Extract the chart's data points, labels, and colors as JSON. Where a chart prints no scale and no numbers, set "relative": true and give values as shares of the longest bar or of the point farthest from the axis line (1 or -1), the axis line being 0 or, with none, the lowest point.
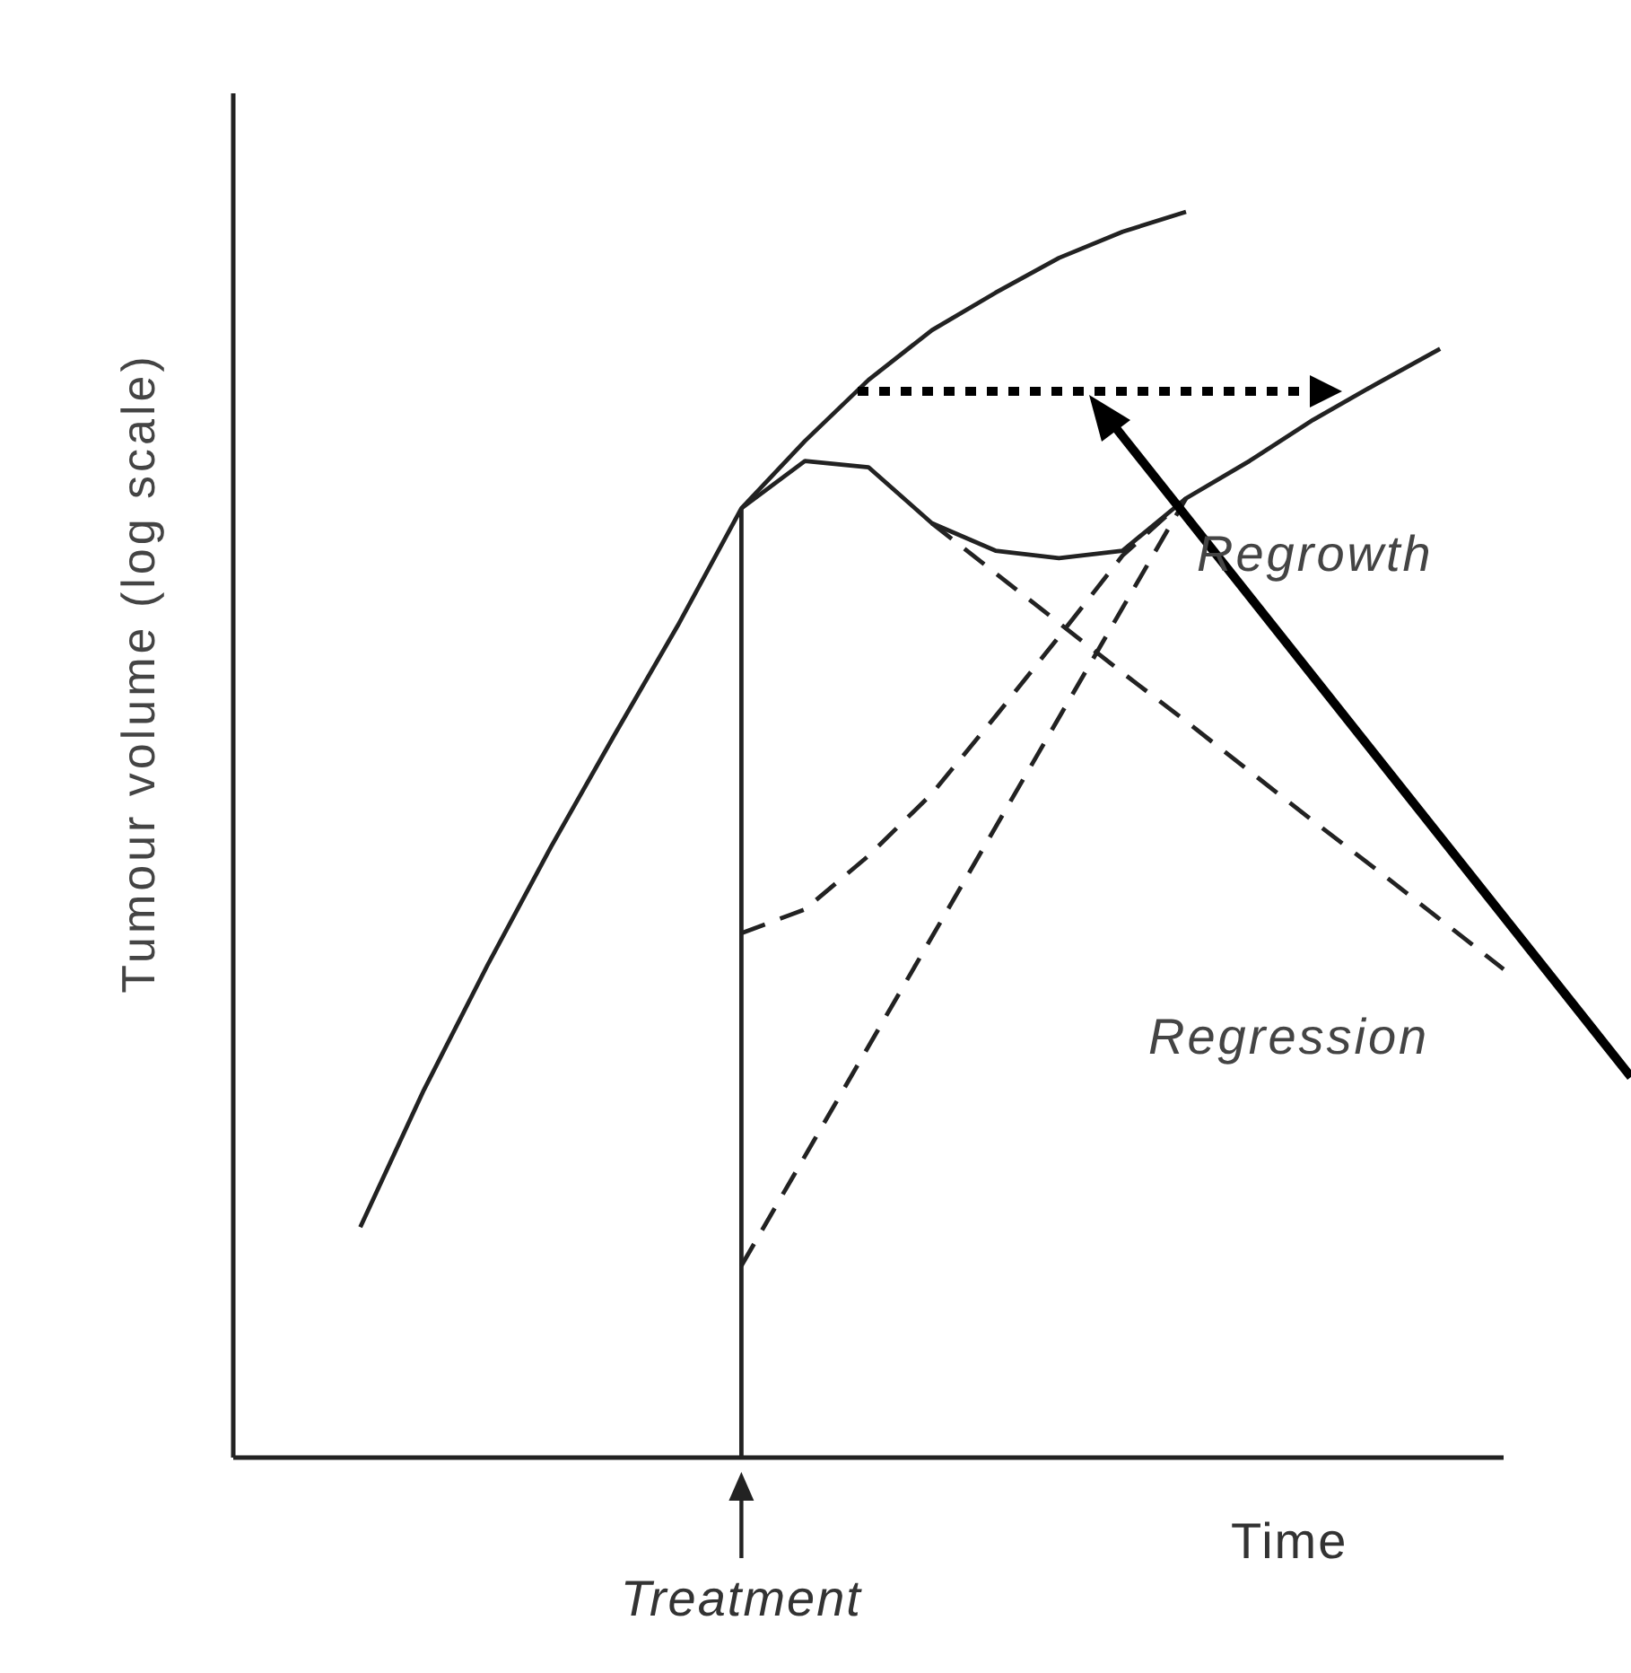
{
  "chart_data": {
    "type": "line",
    "relative": true,
    "xlabel": "Time",
    "ylabel": "Tumour volume (log scale)",
    "categories": [
      null,
      null,
      null,
      null,
      null,
      null,
      null,
      null,
      null,
      null,
      null,
      null,
      null,
      null,
      null,
      null,
      null,
      null,
      null,
      null,
      null
    ],
    "series": [
      {
        "color": "#222222",
        "line_style": "solid",
        "values": [
          null,
          null,
          0.185,
          0.295,
          0.395,
          0.49,
          0.58,
          0.668,
          0.762,
          0.816,
          0.865,
          0.905,
          0.935,
          0.963,
          0.984,
          1.0,
          null,
          null,
          null,
          null,
          null
        ]
      },
      {
        "color": "#222222",
        "line_style": "solid",
        "values": [
          null,
          null,
          null,
          null,
          null,
          null,
          null,
          null,
          0.762,
          0.8,
          0.795,
          0.75,
          0.728,
          0.722,
          0.728,
          0.77,
          0.8,
          0.833,
          0.862,
          0.89,
          null
        ]
      },
      {
        "color": "#222222",
        "line_style": "dashed",
        "values": [
          null,
          null,
          null,
          null,
          null,
          null,
          null,
          null,
          null,
          null,
          null,
          0.75,
          0.71,
          0.67,
          0.63,
          0.591,
          0.551,
          0.511,
          0.472,
          0.432,
          0.392
        ]
      },
      {
        "color": "#222222",
        "line_style": "dashed",
        "values": [
          null,
          null,
          null,
          null,
          null,
          null,
          null,
          null,
          0.421,
          0.44,
          0.483,
          0.533,
          0.595,
          0.659,
          0.724,
          0.77,
          null,
          null,
          null,
          null,
          null
        ]
      },
      {
        "color": "#222222",
        "line_style": "dashed",
        "values": [
          null,
          null,
          null,
          null,
          null,
          null,
          null,
          null,
          0.154,
          0.242,
          0.33,
          0.418,
          0.506,
          0.594,
          0.682,
          0.77,
          null,
          null,
          null,
          null,
          null
        ]
      }
    ],
    "annotations": [
      "Regrowth",
      "Regression",
      "Treatment"
    ]
  }
}
